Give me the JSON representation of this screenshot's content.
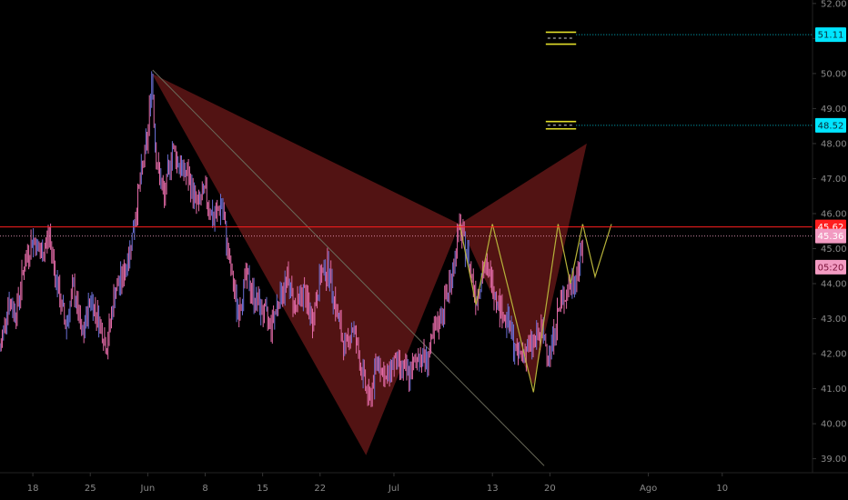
{
  "chart_data": {
    "type": "line",
    "y_ticks": [
      "52.00",
      "51.00",
      "50.00",
      "49.00",
      "48.00",
      "47.00",
      "46.00",
      "45.00",
      "44.00",
      "43.00",
      "42.00",
      "41.00",
      "40.00",
      "39.00"
    ],
    "y_tick_values": [
      52,
      51,
      50,
      49,
      48,
      47,
      46,
      45,
      44,
      43,
      42,
      41,
      40,
      39
    ],
    "ylim": [
      38.6,
      52.1
    ],
    "x_ticks": [
      {
        "label": "18",
        "day": 18
      },
      {
        "label": "25",
        "day": 25
      },
      {
        "label": "Jun",
        "day": 32
      },
      {
        "label": "8",
        "day": 39
      },
      {
        "label": "15",
        "day": 46
      },
      {
        "label": "22",
        "day": 53
      },
      {
        "label": "Jul",
        "day": 62
      },
      {
        "label": "13",
        "day": 74
      },
      {
        "label": "20",
        "day": 81
      },
      {
        "label": "Ago",
        "day": 93
      },
      {
        "label": "10",
        "day": 102
      }
    ],
    "xlim": [
      14,
      113
    ],
    "price_path": [
      [
        14,
        42.1
      ],
      [
        15,
        43.5
      ],
      [
        16,
        43.2
      ],
      [
        17,
        44.6
      ],
      [
        18,
        45.3
      ],
      [
        19,
        44.8
      ],
      [
        20,
        45.4
      ],
      [
        21,
        43.9
      ],
      [
        22,
        42.8
      ],
      [
        23,
        43.9
      ],
      [
        24,
        42.4
      ],
      [
        25,
        43.6
      ],
      [
        26,
        43.0
      ],
      [
        27,
        42.2
      ],
      [
        28,
        43.8
      ],
      [
        29,
        44.2
      ],
      [
        30,
        45.2
      ],
      [
        31,
        46.8
      ],
      [
        32,
        48.2
      ],
      [
        32.5,
        50.0
      ],
      [
        33,
        47.6
      ],
      [
        34,
        46.4
      ],
      [
        35,
        47.9
      ],
      [
        36,
        47.3
      ],
      [
        37,
        47.0
      ],
      [
        38,
        46.2
      ],
      [
        39,
        46.6
      ],
      [
        40,
        45.8
      ],
      [
        41,
        46.3
      ],
      [
        42,
        44.5
      ],
      [
        43,
        43.2
      ],
      [
        44,
        44.2
      ],
      [
        45,
        43.6
      ],
      [
        46,
        43.2
      ],
      [
        47,
        42.8
      ],
      [
        48,
        43.6
      ],
      [
        49,
        44.1
      ],
      [
        50,
        43.3
      ],
      [
        51,
        43.8
      ],
      [
        52,
        42.9
      ],
      [
        53,
        44.2
      ],
      [
        54,
        44.5
      ],
      [
        55,
        43.2
      ],
      [
        56,
        42.1
      ],
      [
        57,
        42.8
      ],
      [
        58,
        41.6
      ],
      [
        59,
        40.6
      ],
      [
        60,
        41.9
      ],
      [
        61,
        41.2
      ],
      [
        62,
        41.8
      ],
      [
        63,
        41.5
      ],
      [
        64,
        41.4
      ],
      [
        65,
        42.0
      ],
      [
        66,
        41.8
      ],
      [
        67,
        42.6
      ],
      [
        68,
        43.3
      ],
      [
        69,
        44.2
      ],
      [
        70,
        45.6
      ],
      [
        71,
        44.8
      ],
      [
        72,
        43.6
      ],
      [
        73,
        44.5
      ],
      [
        74,
        44.0
      ],
      [
        75,
        43.3
      ],
      [
        76,
        42.8
      ],
      [
        77,
        41.9
      ],
      [
        78,
        42.1
      ],
      [
        79,
        42.3
      ],
      [
        80,
        42.6
      ],
      [
        81,
        42.0
      ],
      [
        82,
        43.2
      ],
      [
        83,
        43.8
      ],
      [
        84,
        44.1
      ],
      [
        85,
        45.0
      ]
    ],
    "harmonic_pattern": [
      [
        32.5,
        50.0
      ],
      [
        58.6,
        39.1
      ],
      [
        70,
        45.7
      ],
      [
        79,
        41.1
      ],
      [
        85.5,
        48.0
      ]
    ],
    "zigzag": [
      [
        70,
        45.7
      ],
      [
        72,
        43.4
      ],
      [
        74,
        45.7
      ],
      [
        76,
        43.8
      ],
      [
        79,
        40.9
      ],
      [
        82,
        45.7
      ],
      [
        83.5,
        44.0
      ],
      [
        85,
        45.7
      ]
    ],
    "projection": [
      [
        85,
        45.7
      ],
      [
        86.5,
        44.2
      ],
      [
        88.5,
        45.7
      ]
    ],
    "diagonal_line": [
      [
        32.6,
        50.1
      ],
      [
        80.3,
        38.8
      ]
    ],
    "lines": [
      {
        "value": 45.62,
        "label": "45.62",
        "color": "#ff1e1e",
        "style": "solid"
      },
      {
        "value": 45.36,
        "label": "45.36",
        "color": "#f5a3c7",
        "style": "dotted"
      },
      {
        "value": 51.11,
        "label": "51.11",
        "color": "#00e5ff",
        "style": "dotted"
      },
      {
        "value": 48.52,
        "label": "48.52",
        "color": "#00e5ff",
        "style": "dotted"
      }
    ],
    "countdown_label": "05:20",
    "countdown_value": 44.47,
    "targets": [
      {
        "day_start": 80.5,
        "day_end": 84.2,
        "top": 51.18,
        "bottom": 50.84
      },
      {
        "day_start": 80.5,
        "day_end": 84.2,
        "top": 48.63,
        "bottom": 48.42
      }
    ],
    "colors": {
      "bg": "#000000",
      "candle": "#e26aa6",
      "candle_dark": "#6a6fd4",
      "pattern": "#6e1a1a",
      "zigzag": "#b6b23a",
      "diagonal": "#6a6a5a",
      "axis_text": "#8a8a8a"
    }
  }
}
